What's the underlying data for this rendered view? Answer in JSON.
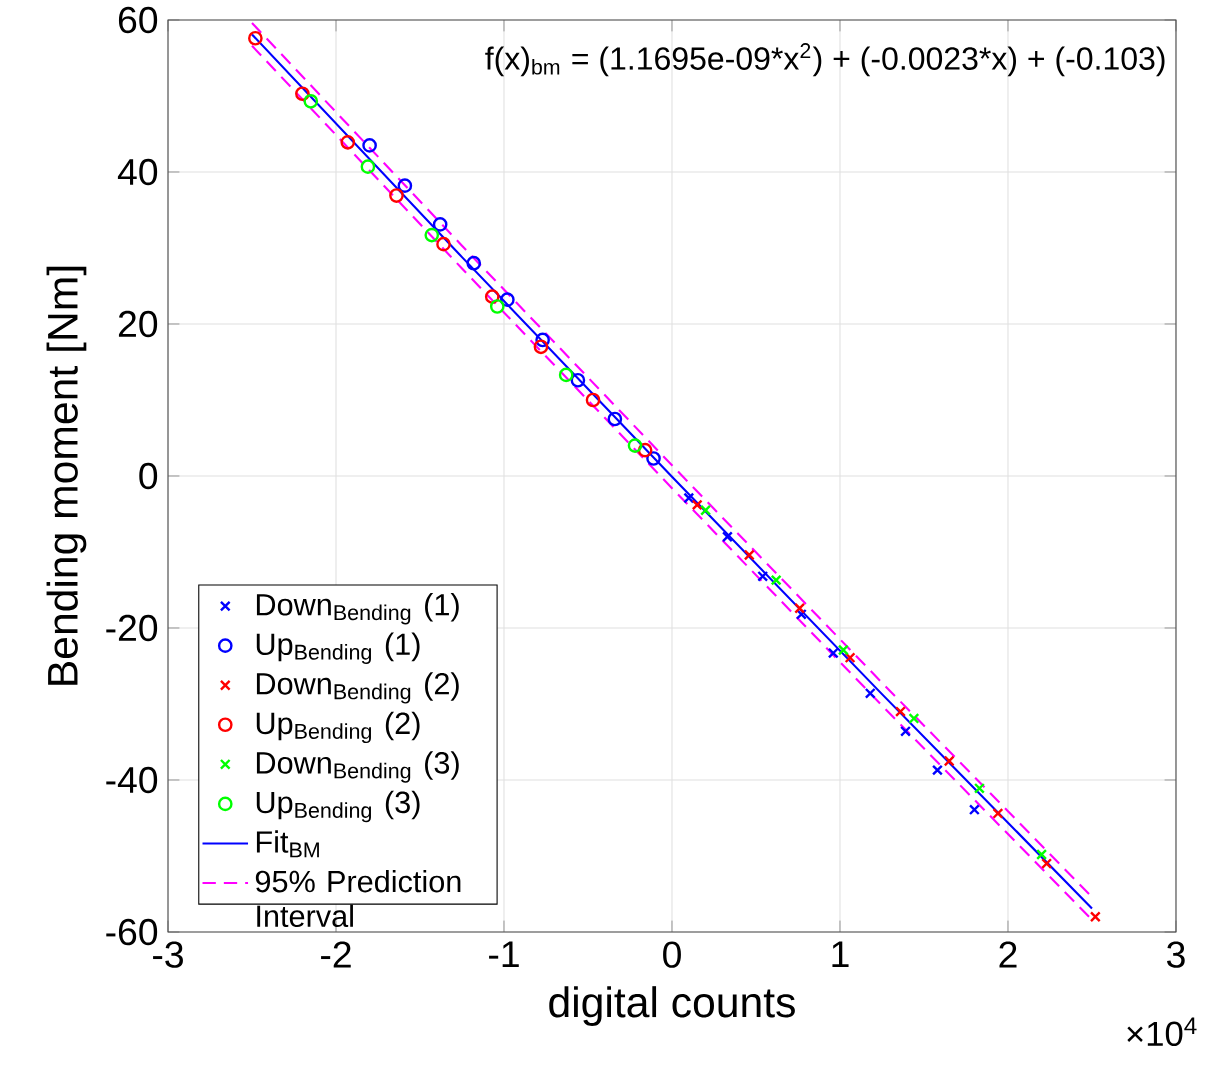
{
  "chart_data": {
    "type": "scatter",
    "xlabel": "digital counts",
    "ylabel": "Bending moment [Nm]",
    "annotations": [
      "f(x)$_{bm}$ = (1.1695e-09*x$^{2}$) + (-0.0023*x) + (-0.103)",
      "×10$^{4}$"
    ],
    "xlim": [
      -3,
      3
    ],
    "xticks": [
      -3,
      -2,
      -1,
      0,
      1,
      2,
      3
    ],
    "ylim": [
      -60,
      60
    ],
    "yticks": [
      -60,
      -40,
      -20,
      0,
      20,
      40,
      60
    ],
    "grid": true,
    "legend": "bottom left",
    "series": [
      {
        "name": "Down$_{Bending}$ (1)",
        "color": "#0000ff",
        "marker": "cross",
        "x": [
          0.1,
          0.33,
          0.54,
          0.77,
          0.96,
          1.18,
          1.39,
          1.58,
          1.8
        ],
        "values": [
          -2.9,
          -8.0,
          -13.2,
          -18.2,
          -23.3,
          -28.6,
          -33.6,
          -38.7,
          -43.9
        ]
      },
      {
        "name": "Up$_{Bending}$ (1)",
        "color": "#0000ff",
        "marker": "circle",
        "x": [
          -1.8,
          -1.59,
          -1.38,
          -1.18,
          -0.98,
          -0.77,
          -0.56,
          -0.34,
          -0.11
        ],
        "values": [
          43.5,
          38.2,
          33.1,
          28.0,
          23.2,
          17.9,
          12.6,
          7.5,
          2.3
        ]
      },
      {
        "name": "Down$_{Bending}$ (2)",
        "color": "#ff0000",
        "marker": "cross",
        "x": [
          0.15,
          0.46,
          0.76,
          1.06,
          1.36,
          1.65,
          1.94,
          2.23,
          2.52
        ],
        "values": [
          -3.8,
          -10.4,
          -17.4,
          -23.9,
          -31.0,
          -37.5,
          -44.4,
          -51.0,
          -58.0
        ]
      },
      {
        "name": "Up$_{Bending}$ (2)",
        "color": "#ff0000",
        "marker": "circle",
        "x": [
          -2.48,
          -2.2,
          -1.93,
          -1.64,
          -1.36,
          -1.07,
          -0.78,
          -0.47,
          -0.16
        ],
        "values": [
          57.6,
          50.3,
          43.9,
          36.9,
          30.5,
          23.6,
          17.0,
          10.0,
          3.4
        ]
      },
      {
        "name": "Down$_{Bending}$ (3)",
        "color": "#00ff00",
        "marker": "cross",
        "x": [
          0.2,
          0.62,
          1.02,
          1.44,
          1.83,
          2.2
        ],
        "values": [
          -4.5,
          -13.7,
          -22.9,
          -31.9,
          -41.1,
          -49.8
        ]
      },
      {
        "name": "Up$_{Bending}$ (3)",
        "color": "#00ff00",
        "marker": "circle",
        "x": [
          -2.15,
          -1.81,
          -1.43,
          -1.04,
          -0.63,
          -0.22
        ],
        "values": [
          49.3,
          40.7,
          31.7,
          22.3,
          13.3,
          4.0
        ]
      },
      {
        "name": "Fit$_{BM}$",
        "color": "#0000ff",
        "type": "line",
        "marker": "none",
        "line_style": "solid",
        "x": [
          -2.5,
          -1.25,
          0,
          1.25,
          2.5
        ],
        "values": [
          58.1,
          28.8,
          -0.1,
          -28.7,
          -56.9
        ]
      },
      {
        "name": "95% Prediction Interval",
        "color": "#ff00ff",
        "type": "line",
        "marker": "none",
        "line_style": "dashed",
        "x": [
          -2.5,
          -1.25,
          0,
          1.25,
          2.5
        ],
        "values": [
          59.6,
          30.3,
          1.4,
          -27.2,
          -55.4
        ]
      },
      {
        "color": "#ff00ff",
        "type": "line",
        "marker": "none",
        "line_style": "dashed",
        "x": [
          -2.5,
          -1.25,
          0,
          1.25,
          2.5
        ],
        "values": [
          56.6,
          27.3,
          -1.6,
          -30.2,
          -58.4
        ]
      }
    ]
  }
}
